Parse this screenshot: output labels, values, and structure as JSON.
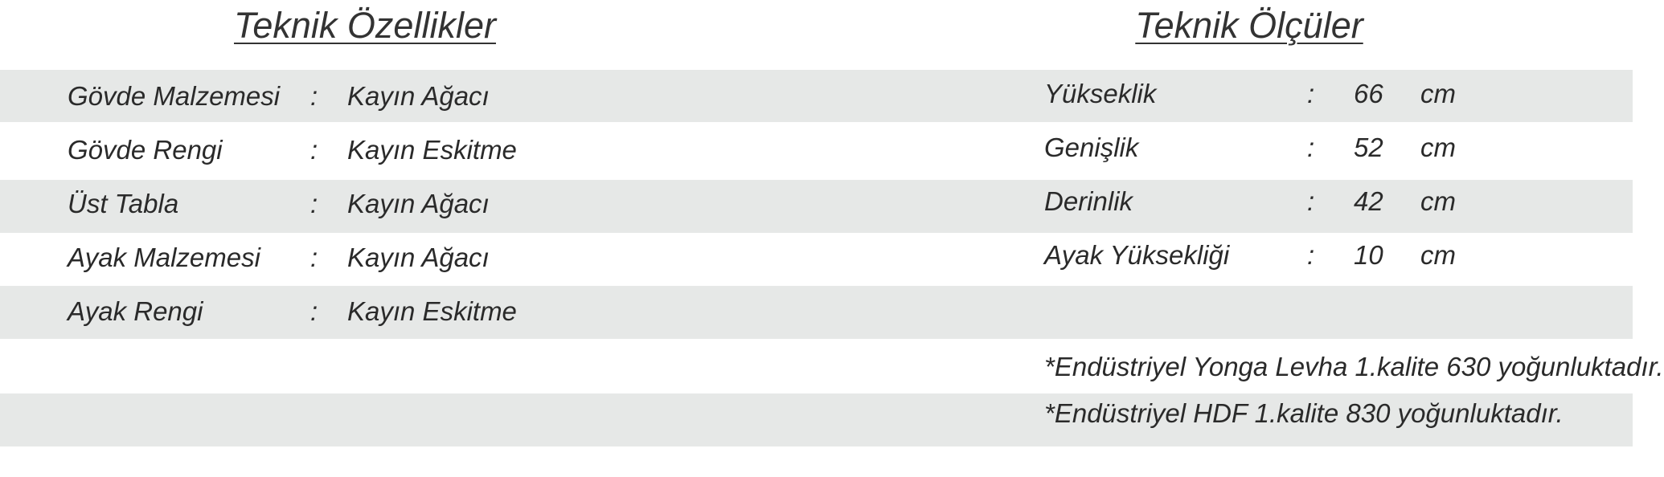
{
  "left": {
    "title": "Teknik Özellikler",
    "rows": [
      {
        "label": "Gövde Malzemesi",
        "sep": ":",
        "value": "Kayın Ağacı"
      },
      {
        "label": "Gövde Rengi",
        "sep": ":",
        "value": "Kayın Eskitme"
      },
      {
        "label": "Üst Tabla",
        "sep": ":",
        "value": "Kayın Ağacı"
      },
      {
        "label": "Ayak Malzemesi",
        "sep": ":",
        "value": "Kayın Ağacı"
      },
      {
        "label": "Ayak Rengi",
        "sep": ":",
        "value": "Kayın Eskitme"
      }
    ]
  },
  "right": {
    "title": "Teknik Ölçüler",
    "rows": [
      {
        "label": "Yükseklik",
        "sep": ":",
        "value": "66",
        "unit": "cm"
      },
      {
        "label": "Genişlik",
        "sep": ":",
        "value": "52",
        "unit": "cm"
      },
      {
        "label": "Derinlik",
        "sep": ":",
        "value": "42",
        "unit": "cm"
      },
      {
        "label": "Ayak Yüksekliği",
        "sep": ":",
        "value": "10",
        "unit": "cm"
      }
    ],
    "notes": [
      "*Endüstriyel Yonga Levha 1.kalite 630 yoğunluktadır.",
      "*Endüstriyel HDF 1.kalite 830 yoğunluktadır."
    ]
  },
  "colors": {
    "band": "#e6e8e7",
    "text": "#2a2a2a"
  }
}
